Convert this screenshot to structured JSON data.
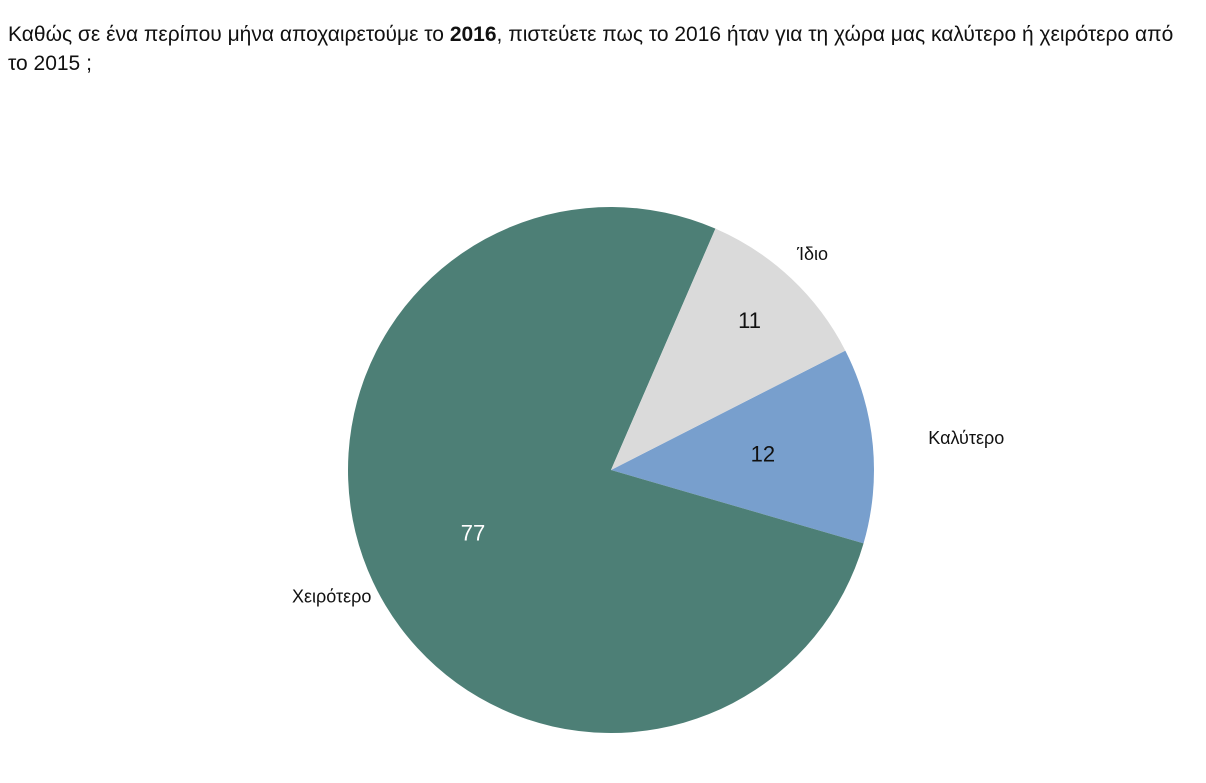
{
  "question": {
    "before": "Καθώς σε ένα περίπου μήνα αποχαιρετούμε το ",
    "bold": "2016",
    "after": ", πιστεύετε πως το 2016 ήταν για τη χώρα μας καλύτερο ή χειρότερο από το 2015 ;"
  },
  "chart_data": {
    "type": "pie",
    "title": "",
    "categories": [
      "Καλύτερο",
      "Χειρότερο",
      "Ίδιο"
    ],
    "values": [
      12,
      77,
      11
    ],
    "colors": [
      "#789fcd",
      "#4d7f76",
      "#dadada"
    ],
    "value_label_colors": [
      "#111111",
      "#ffffff",
      "#111111"
    ],
    "legend": "none"
  }
}
